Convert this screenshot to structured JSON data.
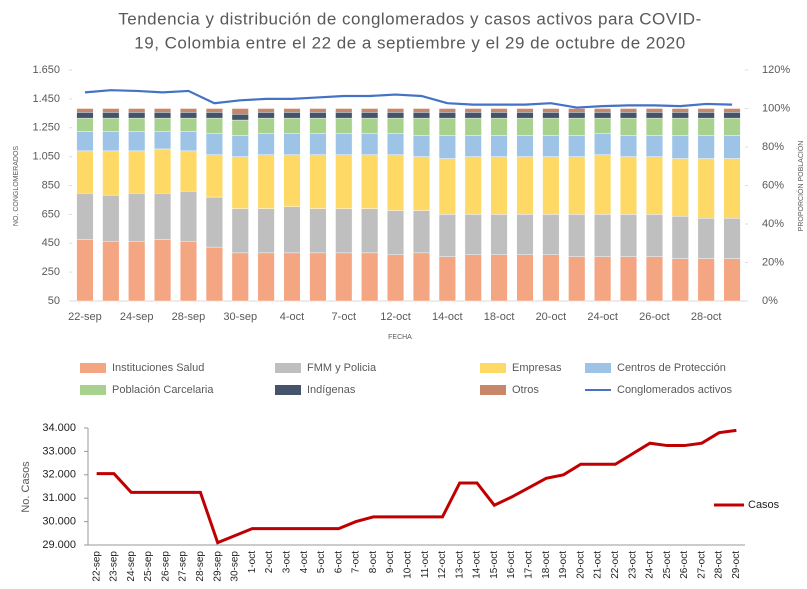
{
  "chart_data": [
    {
      "type": "bar",
      "stacked": true,
      "title": [
        "Tendencia y distribución de conglomerados y casos activos para COVID-",
        "19, Colombia entre el 22 de a septiembre y el 29 de octubre de 2020"
      ],
      "ylabel": "NO. CONGLOMERADOS",
      "y2label": "PROPORCIÓN POBLACIÓN",
      "xlabel": "FECHA",
      "categories": [
        "22-sep",
        null,
        "24-sep",
        null,
        "28-sep",
        null,
        "30-sep",
        null,
        "4-oct",
        null,
        "7-oct",
        null,
        "12-oct",
        null,
        "14-oct",
        null,
        "18-oct",
        null,
        "20-oct",
        null,
        "24-oct",
        null,
        "26-oct",
        null,
        "28-oct",
        null
      ],
      "ylim": [
        50,
        1650
      ],
      "yticks": [
        {
          "value": 50,
          "label": "50"
        },
        {
          "value": 250,
          "label": "250"
        },
        {
          "value": 450,
          "label": "450"
        },
        {
          "value": 650,
          "label": "650"
        },
        {
          "value": 850,
          "label": "850"
        },
        {
          "value": 1050,
          "label": "1.050"
        },
        {
          "value": 1250,
          "label": "1.250"
        },
        {
          "value": 1450,
          "label": "1.450"
        },
        {
          "value": 1650,
          "label": "1.650"
        }
      ],
      "y2lim": [
        0,
        120
      ],
      "y2ticks": [
        {
          "value": 0,
          "label": "0%"
        },
        {
          "value": 20,
          "label": "20%"
        },
        {
          "value": 40,
          "label": "40%"
        },
        {
          "value": 60,
          "label": "60%"
        },
        {
          "value": 80,
          "label": "80%"
        },
        {
          "value": 100,
          "label": "100%"
        },
        {
          "value": 120,
          "label": "120%"
        }
      ],
      "series": [
        {
          "name": "Instituciones Salud",
          "color": "#f4a582",
          "axis": "y2",
          "values": [
            32,
            31,
            31,
            32,
            31,
            28,
            25,
            25,
            25,
            25,
            25,
            25,
            24,
            25,
            23,
            24,
            24,
            24,
            24,
            23,
            23,
            23,
            23,
            22,
            22,
            22
          ]
        },
        {
          "name": "FMM y Policia",
          "color": "#bfbfbf",
          "axis": "y2",
          "values": [
            24,
            24,
            25,
            24,
            26,
            26,
            23,
            23,
            24,
            23,
            23,
            23,
            23,
            22,
            22,
            21,
            21,
            21,
            21,
            22,
            22,
            22,
            22,
            22,
            21,
            21
          ]
        },
        {
          "name": "Empresas",
          "color": "#ffd966",
          "axis": "y2",
          "values": [
            22,
            23,
            22,
            23,
            21,
            22,
            27,
            28,
            27,
            28,
            28,
            28,
            29,
            28,
            29,
            30,
            30,
            30,
            30,
            30,
            31,
            30,
            30,
            30,
            31,
            31
          ]
        },
        {
          "name": "Centros de Protección",
          "color": "#9dc3e6",
          "axis": "y2",
          "values": [
            10,
            10,
            10,
            9,
            10,
            11,
            11,
            11,
            11,
            11,
            11,
            11,
            11,
            11,
            12,
            11,
            11,
            11,
            11,
            11,
            11,
            11,
            11,
            12,
            12,
            12
          ]
        },
        {
          "name": "Población Carcelaria",
          "color": "#a9d18e",
          "axis": "y2",
          "values": [
            7,
            7,
            7,
            7,
            7,
            8,
            8,
            8,
            8,
            8,
            8,
            8,
            8,
            9,
            9,
            9,
            9,
            9,
            9,
            9,
            8,
            9,
            9,
            9,
            9,
            9
          ]
        },
        {
          "name": "Indígenas",
          "color": "#44546a",
          "axis": "y2",
          "values": [
            3,
            3,
            3,
            3,
            3,
            3,
            3,
            3,
            3,
            3,
            3,
            3,
            3,
            3,
            3,
            3,
            3,
            3,
            3,
            3,
            3,
            3,
            3,
            3,
            3,
            3
          ]
        },
        {
          "name": "Otros",
          "color": "#c9876a",
          "axis": "y2",
          "values": [
            2,
            2,
            2,
            2,
            2,
            2,
            3,
            2,
            2,
            2,
            2,
            2,
            2,
            2,
            2,
            2,
            2,
            2,
            2,
            2,
            2,
            2,
            2,
            2,
            2,
            2
          ]
        },
        {
          "name": "Conglomerados activos",
          "color": "#4472c4",
          "type": "line",
          "axis": "y",
          "values": [
            1495,
            1510,
            1505,
            1495,
            1505,
            1420,
            1440,
            1450,
            1450,
            1460,
            1470,
            1470,
            1480,
            1470,
            1420,
            1410,
            1410,
            1410,
            1420,
            1390,
            1400,
            1405,
            1405,
            1400,
            1415,
            1410
          ]
        }
      ],
      "legend": "bottom"
    },
    {
      "type": "line",
      "ylabel": "No. Casos",
      "categories": [
        "22-sep",
        "23-sep",
        "24-sep",
        "25-sep",
        "26-sep",
        "27-sep",
        "28-sep",
        "29-sep",
        "30-sep",
        "1-oct",
        "2-oct",
        "3-oct",
        "4-oct",
        "5-oct",
        "6-oct",
        "7-oct",
        "8-oct",
        "9-oct",
        "10-oct",
        "11-oct",
        "12-oct",
        "13-oct",
        "14-oct",
        "15-oct",
        "16-oct",
        "17-oct",
        "18-oct",
        "19-oct",
        "20-oct",
        "21-oct",
        "22-oct",
        "23-oct",
        "24-oct",
        "25-oct",
        "26-oct",
        "27-oct",
        "28-oct",
        "29-oct"
      ],
      "ylim": [
        29000,
        34000
      ],
      "yticks": [
        {
          "value": 29000,
          "label": "29.000"
        },
        {
          "value": 30000,
          "label": "30.000"
        },
        {
          "value": 31000,
          "label": "31.000"
        },
        {
          "value": 32000,
          "label": "32.000"
        },
        {
          "value": 33000,
          "label": "33.000"
        },
        {
          "value": 34000,
          "label": "34.000"
        }
      ],
      "series": [
        {
          "name": "Casos",
          "color": "#c00000",
          "values": [
            32050,
            32050,
            31250,
            31250,
            31250,
            31250,
            31250,
            29100,
            29400,
            29700,
            29700,
            29700,
            29700,
            29700,
            29700,
            30000,
            30200,
            30200,
            30200,
            30200,
            30200,
            31650,
            31650,
            30700,
            31050,
            31450,
            31850,
            32000,
            32450,
            32450,
            32450,
            32900,
            33350,
            33250,
            33250,
            33350,
            33800,
            33900
          ]
        }
      ],
      "legend": "right"
    }
  ]
}
